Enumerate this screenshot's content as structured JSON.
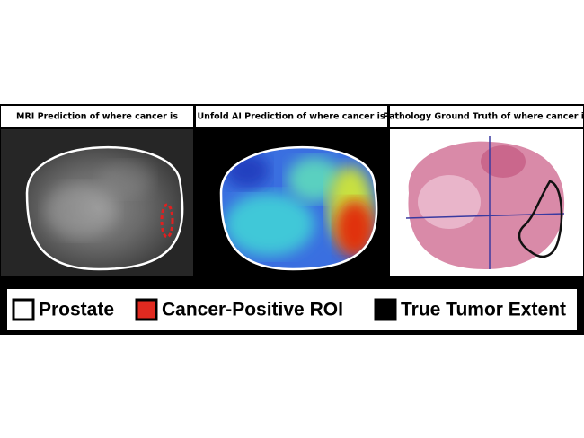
{
  "panels": [
    {
      "title": "MRI Prediction of where cancer is"
    },
    {
      "title": "Unfold AI Prediction of where cancer is"
    },
    {
      "title": "Pathology Ground Truth of where cancer is"
    }
  ],
  "legend": [
    {
      "label": "Prostate"
    },
    {
      "label": "Cancer-Positive ROI"
    },
    {
      "label": "True Tumor Extent"
    }
  ]
}
